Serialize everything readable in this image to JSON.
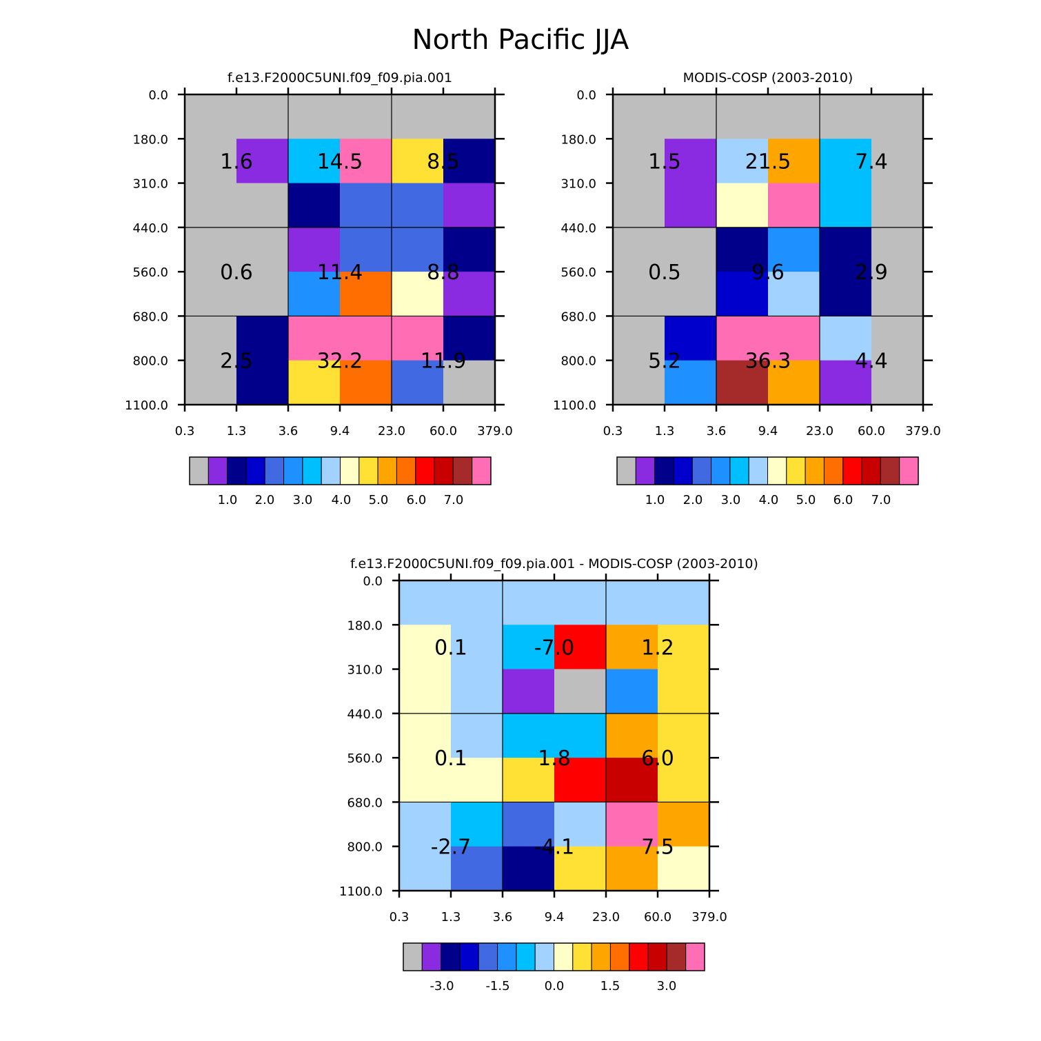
{
  "title": "North Pacific JJA",
  "colors": {
    "gray": "#bebebe",
    "violet": "#8a2be2",
    "navy": "#00008b",
    "mediumblue": "#0000cd",
    "royalblue": "#4169e1",
    "dodgerblue": "#1e90ff",
    "deepskyblue": "#00bfff",
    "lightblue": "#a2d2ff",
    "lightyellow": "#ffffc8",
    "gold": "#ffe135",
    "orange": "#ffa500",
    "darkorange": "#ff6e00",
    "red": "#ff0000",
    "darkred": "#c80000",
    "brown": "#a52a2a",
    "pink": "#ff6eb4"
  },
  "chart_data": [
    {
      "type": "heatmap",
      "title": "f.e13.F2000C5UNI.f09_f09.pia.001",
      "x_tick_labels": [
        "0.3",
        "1.3",
        "3.6",
        "9.4",
        "23.0",
        "60.0",
        "379.0"
      ],
      "y_tick_labels": [
        "0.0",
        "180.0",
        "310.0",
        "440.0",
        "560.0",
        "680.0",
        "800.0",
        "1100.0"
      ],
      "cell_colors": [
        [
          "gray",
          "gray",
          "gray",
          "gray",
          "gray",
          "gray"
        ],
        [
          "gray",
          "violet",
          "deepskyblue",
          "pink",
          "gold",
          "navy"
        ],
        [
          "gray",
          "gray",
          "navy",
          "royalblue",
          "royalblue",
          "violet"
        ],
        [
          "gray",
          "gray",
          "violet",
          "royalblue",
          "royalblue",
          "navy"
        ],
        [
          "gray",
          "gray",
          "dodgerblue",
          "darkorange",
          "lightyellow",
          "violet"
        ],
        [
          "gray",
          "navy",
          "pink",
          "pink",
          "pink",
          "navy"
        ],
        [
          "gray",
          "navy",
          "gold",
          "darkorange",
          "royalblue",
          "gray"
        ]
      ],
      "group_values": [
        [
          "1.6",
          "14.5",
          "8.5"
        ],
        [
          "0.6",
          "11.4",
          "8.8"
        ],
        [
          "2.5",
          "32.2",
          "11.9"
        ]
      ],
      "colorbar": {
        "colors": [
          "gray",
          "violet",
          "navy",
          "mediumblue",
          "royalblue",
          "dodgerblue",
          "deepskyblue",
          "lightblue",
          "lightyellow",
          "gold",
          "orange",
          "darkorange",
          "red",
          "darkred",
          "brown",
          "pink"
        ],
        "labels": [
          "1.0",
          "2.0",
          "3.0",
          "4.0",
          "5.0",
          "6.0",
          "7.0"
        ]
      }
    },
    {
      "type": "heatmap",
      "title": "MODIS-COSP (2003-2010)",
      "x_tick_labels": [
        "0.3",
        "1.3",
        "3.6",
        "9.4",
        "23.0",
        "60.0",
        "379.0"
      ],
      "y_tick_labels": [
        "0.0",
        "180.0",
        "310.0",
        "440.0",
        "560.0",
        "680.0",
        "800.0",
        "1100.0"
      ],
      "cell_colors": [
        [
          "gray",
          "gray",
          "gray",
          "gray",
          "gray",
          "gray"
        ],
        [
          "gray",
          "violet",
          "lightblue",
          "orange",
          "deepskyblue",
          "gray"
        ],
        [
          "gray",
          "violet",
          "lightyellow",
          "pink",
          "deepskyblue",
          "gray"
        ],
        [
          "gray",
          "gray",
          "navy",
          "dodgerblue",
          "navy",
          "gray"
        ],
        [
          "gray",
          "gray",
          "mediumblue",
          "lightblue",
          "navy",
          "gray"
        ],
        [
          "gray",
          "mediumblue",
          "pink",
          "pink",
          "lightblue",
          "gray"
        ],
        [
          "gray",
          "dodgerblue",
          "brown",
          "orange",
          "violet",
          "gray"
        ]
      ],
      "group_values": [
        [
          "1.5",
          "21.5",
          "7.4"
        ],
        [
          "0.5",
          "9.6",
          "2.9"
        ],
        [
          "5.2",
          "36.3",
          "4.4"
        ]
      ],
      "colorbar": {
        "colors": [
          "gray",
          "violet",
          "navy",
          "mediumblue",
          "royalblue",
          "dodgerblue",
          "deepskyblue",
          "lightblue",
          "lightyellow",
          "gold",
          "orange",
          "darkorange",
          "red",
          "darkred",
          "brown",
          "pink"
        ],
        "labels": [
          "1.0",
          "2.0",
          "3.0",
          "4.0",
          "5.0",
          "6.0",
          "7.0"
        ]
      }
    },
    {
      "type": "heatmap",
      "title": "f.e13.F2000C5UNI.f09_f09.pia.001 - MODIS-COSP (2003-2010)",
      "x_tick_labels": [
        "0.3",
        "1.3",
        "3.6",
        "9.4",
        "23.0",
        "60.0",
        "379.0"
      ],
      "y_tick_labels": [
        "0.0",
        "180.0",
        "310.0",
        "440.0",
        "560.0",
        "680.0",
        "800.0",
        "1100.0"
      ],
      "cell_colors": [
        [
          "lightblue",
          "lightblue",
          "lightblue",
          "lightblue",
          "lightblue",
          "lightblue"
        ],
        [
          "lightyellow",
          "lightblue",
          "deepskyblue",
          "red",
          "orange",
          "gold"
        ],
        [
          "lightyellow",
          "lightblue",
          "violet",
          "gray",
          "dodgerblue",
          "gold"
        ],
        [
          "lightyellow",
          "lightblue",
          "deepskyblue",
          "deepskyblue",
          "orange",
          "gold"
        ],
        [
          "lightyellow",
          "lightyellow",
          "gold",
          "red",
          "darkred",
          "gold"
        ],
        [
          "lightblue",
          "deepskyblue",
          "royalblue",
          "lightblue",
          "pink",
          "orange"
        ],
        [
          "lightblue",
          "royalblue",
          "navy",
          "gold",
          "orange",
          "lightyellow"
        ]
      ],
      "group_values": [
        [
          "0.1",
          "-7.0",
          "1.2"
        ],
        [
          "0.1",
          "1.8",
          "6.0"
        ],
        [
          "-2.7",
          "-4.1",
          "7.5"
        ]
      ],
      "colorbar": {
        "colors": [
          "gray",
          "violet",
          "navy",
          "mediumblue",
          "royalblue",
          "dodgerblue",
          "deepskyblue",
          "lightblue",
          "lightyellow",
          "gold",
          "orange",
          "darkorange",
          "red",
          "darkred",
          "brown",
          "pink"
        ],
        "labels": [
          "-3.0",
          "-1.5",
          "0.0",
          "1.5",
          "3.0"
        ]
      }
    }
  ]
}
